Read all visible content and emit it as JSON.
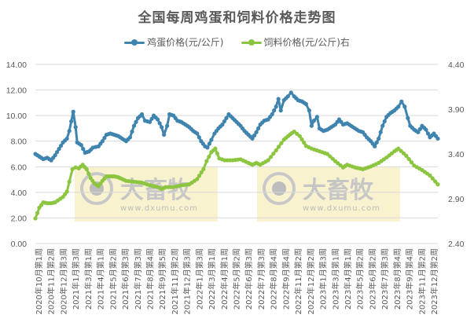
{
  "title": "全国每周鸡蛋和饲料价格走势图",
  "legend": [
    {
      "label": "鸡蛋价格(元/公斤)",
      "color": "#3E84AF"
    },
    {
      "label": "饲料价格(元/公斤)右",
      "color": "#8CC641"
    }
  ],
  "watermark": {
    "brand": "大畜牧",
    "url": "www.dxumu.com"
  },
  "chart_data": {
    "type": "line",
    "title": "全国每周鸡蛋和饲料价格走势图",
    "xlabel": "",
    "ylabel": "鸡蛋价格(元/公斤)",
    "y2label": "饲料价格(元/公斤)",
    "ylim": [
      0,
      14
    ],
    "y2lim": [
      2.4,
      4.4
    ],
    "yticks": [
      "0.00",
      "2.00",
      "4.00",
      "6.00",
      "8.00",
      "10.00",
      "12.00",
      "14.00"
    ],
    "y2ticks": [
      "2.40",
      "2.90",
      "3.40",
      "3.90",
      "4.40"
    ],
    "grid": true,
    "legend_position": "top",
    "x_tick_labels": [
      "2020年10月第1周",
      "2020年11月第2周",
      "2020年12月第3周",
      "2021年1月第3周",
      "2021年3月第1周",
      "2021年4月第1周",
      "2021年5月第2周",
      "2021年6月第3周",
      "2021年7月第3周",
      "2021年8月第4周",
      "2021年9月第5周",
      "2021年11月第2周",
      "2021年12月第3周",
      "2022年1月第3周",
      "2022年3月第1周",
      "2022年4月第1周",
      "2022年5月第2周",
      "2022年6月第3周",
      "2022年7月第3周",
      "2022年8月第4周",
      "2022年9月第4周",
      "2022年11月第2周",
      "2022年12月第2周",
      "2023年1月第3周",
      "2023年3月第1周",
      "2023年4月第1周",
      "2023年5月第2周",
      "2023年6月第2周",
      "2023年7月第3周",
      "2023年8月第4周",
      "2023年9月第4周",
      "2023年11月第2周",
      "2023年12月第2周"
    ],
    "series": [
      {
        "name": "鸡蛋价格(元/公斤)",
        "axis": "left",
        "color": "#3E84AF",
        "x_pos": [
          0,
          5,
          10,
          15,
          20,
          25,
          30,
          35,
          40,
          43,
          48,
          51,
          53,
          58,
          63,
          68,
          73,
          80,
          85,
          90,
          95,
          100,
          105,
          110,
          115,
          120,
          125,
          130,
          135,
          139,
          145,
          150,
          155,
          160,
          163,
          167,
          170,
          175,
          180,
          185,
          190,
          195,
          200,
          205,
          210,
          215,
          218,
          223,
          227,
          232,
          237,
          242,
          245,
          250,
          255,
          260,
          265,
          270,
          275,
          280,
          285,
          290,
          295,
          300,
          305,
          308,
          311,
          315,
          320,
          324,
          328,
          333,
          338,
          343,
          347,
          350,
          353,
          357,
          360,
          365,
          370,
          375,
          380,
          385,
          390,
          395,
          400,
          405,
          410,
          415,
          420,
          425,
          430,
          435,
          440,
          445,
          450,
          455,
          460,
          464,
          468,
          472,
          475,
          480,
          485,
          490,
          495,
          500,
          505,
          510
        ],
        "values": [
          7.0,
          6.8,
          6.6,
          6.7,
          6.5,
          6.9,
          7.4,
          7.9,
          8.2,
          8.8,
          10.3,
          9.1,
          7.9,
          7.7,
          7.1,
          7.2,
          7.5,
          7.6,
          8.0,
          8.5,
          8.6,
          8.5,
          8.4,
          8.2,
          8.0,
          8.3,
          9.2,
          9.8,
          10.1,
          9.6,
          9.5,
          10.0,
          9.7,
          9.1,
          8.5,
          9.2,
          10.1,
          10.0,
          9.6,
          9.5,
          9.3,
          9.1,
          8.8,
          8.6,
          8.0,
          7.6,
          7.5,
          8.1,
          8.6,
          9.0,
          9.3,
          9.8,
          10.1,
          9.8,
          9.5,
          9.2,
          8.8,
          8.5,
          8.2,
          8.7,
          9.3,
          9.6,
          9.7,
          10.1,
          10.7,
          11.3,
          10.4,
          11.2,
          11.5,
          11.8,
          11.5,
          11.2,
          11.1,
          10.9,
          10.4,
          9.2,
          9.6,
          9.9,
          9.0,
          8.8,
          8.9,
          9.1,
          9.3,
          9.7,
          9.3,
          9.4,
          9.2,
          9.0,
          8.8,
          8.7,
          8.3,
          8.0,
          7.6,
          8.2,
          9.2,
          9.9,
          10.2,
          10.4,
          10.7,
          11.1,
          10.7,
          9.8,
          9.2,
          8.9,
          8.7,
          9.2,
          8.9,
          8.3,
          8.6,
          8.2
        ]
      },
      {
        "name": "饲料价格(元/公斤)右",
        "axis": "right",
        "color": "#8CC641",
        "x_pos": [
          0,
          5,
          10,
          15,
          20,
          25,
          35,
          40,
          43,
          47,
          51,
          55,
          60,
          65,
          70,
          75,
          80,
          85,
          90,
          95,
          100,
          105,
          110,
          115,
          125,
          135,
          145,
          155,
          160,
          165,
          175,
          185,
          195,
          205,
          213,
          217,
          223,
          228,
          233,
          240,
          250,
          260,
          270,
          275,
          280,
          285,
          295,
          305,
          315,
          323,
          328,
          335,
          343,
          350,
          360,
          370,
          380,
          390,
          395,
          405,
          415,
          425,
          435,
          445,
          455,
          460,
          470,
          480,
          490,
          500,
          510
        ],
        "values": [
          2.68,
          2.8,
          2.86,
          2.85,
          2.85,
          2.86,
          2.92,
          2.98,
          3.09,
          3.23,
          3.25,
          3.24,
          3.28,
          3.23,
          3.13,
          3.07,
          3.04,
          3.1,
          3.15,
          3.15,
          3.15,
          3.14,
          3.12,
          3.1,
          3.09,
          3.08,
          3.05,
          3.03,
          3.01,
          3.03,
          3.03,
          3.05,
          3.06,
          3.12,
          3.23,
          3.32,
          3.42,
          3.46,
          3.35,
          3.33,
          3.33,
          3.34,
          3.3,
          3.28,
          3.3,
          3.28,
          3.33,
          3.44,
          3.56,
          3.62,
          3.65,
          3.6,
          3.49,
          3.46,
          3.43,
          3.4,
          3.32,
          3.25,
          3.28,
          3.25,
          3.23,
          3.26,
          3.3,
          3.36,
          3.43,
          3.46,
          3.38,
          3.27,
          3.22,
          3.16,
          3.06
        ]
      }
    ]
  }
}
